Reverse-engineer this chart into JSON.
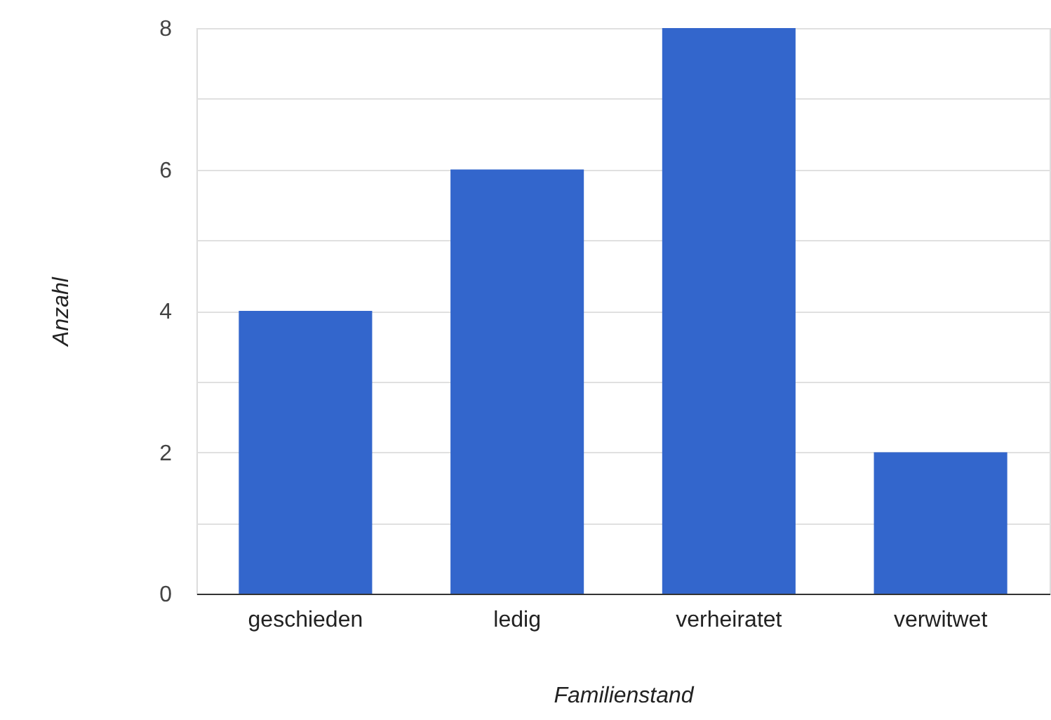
{
  "chart_data": {
    "type": "bar",
    "xlabel": "Familienstand",
    "ylabel": "Anzahl",
    "categories": [
      "geschieden",
      "ledig",
      "verheiratet",
      "verwitwet"
    ],
    "values": [
      4,
      6,
      8,
      2
    ],
    "color": "#3366cc",
    "ylim": [
      0,
      8
    ],
    "yticks": [
      0,
      {
        "value": 1,
        "label": null
      },
      2,
      {
        "value": 3,
        "label": null
      },
      4,
      {
        "value": 5,
        "label": null
      },
      6,
      {
        "value": 7,
        "label": null
      },
      8
    ],
    "grid": "y"
  }
}
